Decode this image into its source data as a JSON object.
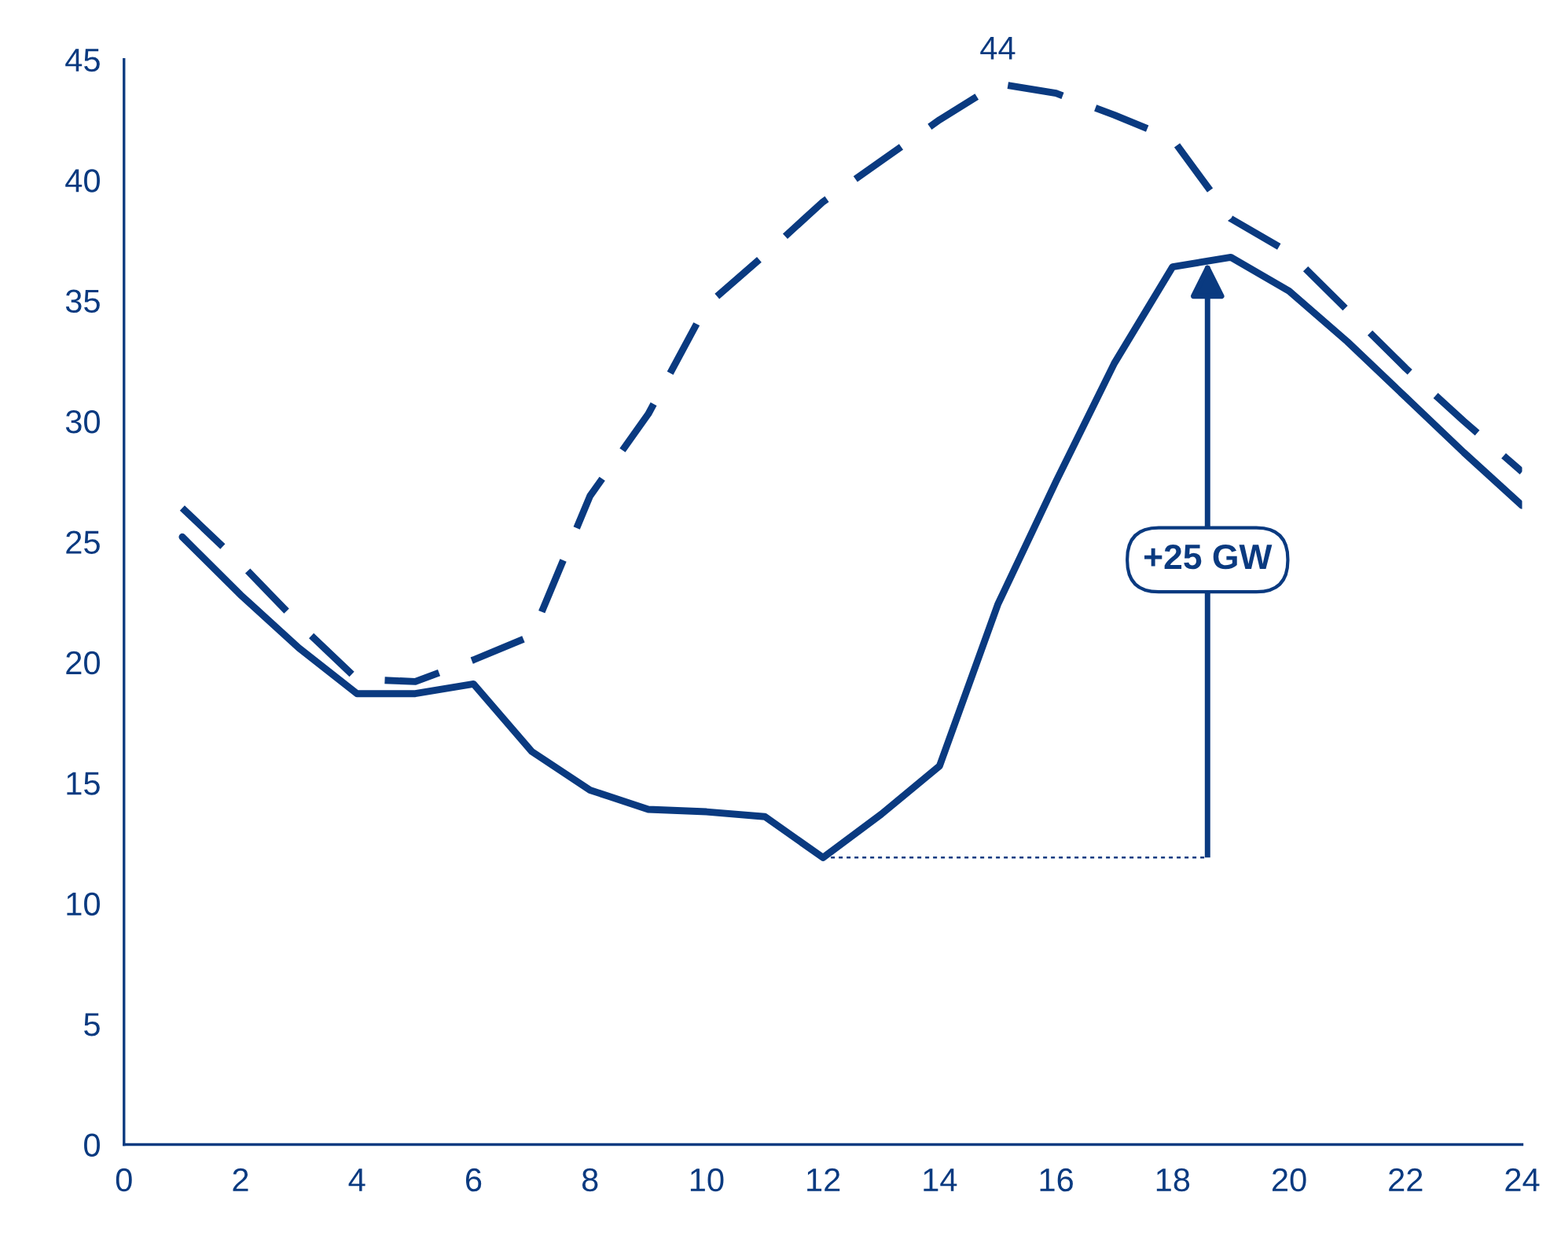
{
  "chart_data": {
    "type": "line",
    "x": [
      1,
      2,
      3,
      4,
      5,
      6,
      7,
      8,
      9,
      10,
      11,
      12,
      13,
      14,
      15,
      16,
      17,
      18,
      19,
      20,
      21,
      22,
      23,
      24
    ],
    "series": [
      {
        "color": "#0a3a80",
        "line_style": "solid",
        "values": [
          25.2,
          22.8,
          20.6,
          18.7,
          18.7,
          19.1,
          16.3,
          14.7,
          13.9,
          13.8,
          13.6,
          11.9,
          13.7,
          15.7,
          22.4,
          27.5,
          32.4,
          36.4,
          36.8,
          35.4,
          33.3,
          31.0,
          28.7,
          26.5
        ]
      },
      {
        "color": "#0a3a80",
        "line_style": "dashed",
        "values": [
          26.4,
          24.1,
          21.6,
          19.3,
          19.2,
          20.1,
          21.1,
          26.9,
          30.3,
          34.8,
          36.9,
          39.1,
          40.8,
          42.5,
          44.0,
          43.6,
          42.7,
          41.7,
          38.4,
          37.0,
          34.6,
          32.2,
          30.0,
          27.9
        ]
      }
    ],
    "xlim": [
      0,
      24
    ],
    "xticks": [
      0,
      2,
      4,
      6,
      8,
      10,
      12,
      14,
      16,
      18,
      20,
      22,
      24
    ],
    "ylim": [
      0,
      45
    ],
    "yticks": [
      0,
      5,
      10,
      15,
      20,
      25,
      30,
      35,
      40,
      45
    ],
    "annotations": [
      {
        "text": "44",
        "x": 15,
        "y": 44.0
      },
      {
        "text": "+25 GW",
        "x": 18.6,
        "y": 36.6
      }
    ],
    "grid": false,
    "legend": false,
    "marker": "none"
  }
}
